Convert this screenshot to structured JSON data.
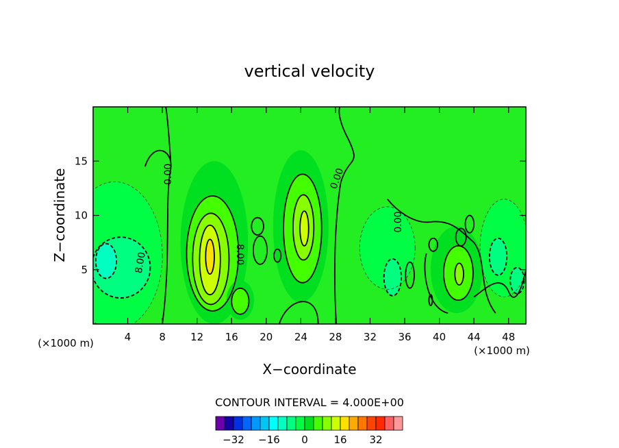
{
  "chart_data": {
    "type": "heatmap",
    "title": "vertical velocity",
    "xlabel": "X−coordinate",
    "ylabel": "Z−coordinate",
    "x_unit_left": "(×1000 m)",
    "x_unit_right": "(×1000 m)",
    "xlim": [
      0,
      50
    ],
    "ylim": [
      0,
      20
    ],
    "x_ticks": [
      4,
      8,
      12,
      16,
      20,
      24,
      28,
      32,
      36,
      40,
      44,
      48
    ],
    "y_ticks": [
      5,
      10,
      15
    ],
    "contour_interval_text": "CONTOUR INTERVAL = 4.000E+00",
    "contour_interval": 4,
    "contour_labels": [
      {
        "text": "0.00",
        "x": 9,
        "y": 13.8,
        "angle": -90
      },
      {
        "text": "0.00",
        "x": 28.5,
        "y": 13.3,
        "angle": -70
      },
      {
        "text": "0.00",
        "x": 35.6,
        "y": 9.4,
        "angle": -90
      },
      {
        "text": "8.00",
        "x": 16.6,
        "y": 6.4,
        "angle": 90
      },
      {
        "text": "8.00",
        "x": 5.8,
        "y": 5.6,
        "angle": -80
      }
    ],
    "features": [
      {
        "kind": "updraft",
        "x": 13.5,
        "z": 5.8,
        "peak": 19
      },
      {
        "kind": "updraft",
        "x": 24.4,
        "z": 8.8,
        "peak": 14
      },
      {
        "kind": "updraft",
        "x": 42.2,
        "z": 4.6,
        "peak": 11
      },
      {
        "kind": "updraft",
        "x": 17.0,
        "z": 2.2,
        "peak": 7
      },
      {
        "kind": "downdraft",
        "x": 2.0,
        "z": 5.5,
        "peak": -10
      },
      {
        "kind": "downdraft",
        "x": 34.5,
        "z": 4.0,
        "peak": -9
      },
      {
        "kind": "downdraft",
        "x": 47.0,
        "z": 6.5,
        "peak": -9
      }
    ],
    "colorbar": {
      "levels": [
        -36,
        -32,
        -28,
        -24,
        -20,
        -16,
        -12,
        -8,
        -4,
        0,
        4,
        8,
        12,
        16,
        20,
        24,
        28,
        32,
        36
      ],
      "tick_labels": [
        "−32",
        "−16",
        "0",
        "16",
        "32"
      ],
      "tick_values": [
        -32,
        -16,
        0,
        16,
        32
      ],
      "colors": [
        "#6a00aa",
        "#1400a6",
        "#0030e0",
        "#0066ff",
        "#0099ff",
        "#00c6f6",
        "#00ffff",
        "#00ffc0",
        "#00ff80",
        "#00ff44",
        "#00e020",
        "#44ff00",
        "#88ff00",
        "#ccff00",
        "#ffe000",
        "#ffaa00",
        "#ff7700",
        "#ff4400",
        "#ff2a00",
        "#ff6060",
        "#ff9999"
      ]
    }
  }
}
